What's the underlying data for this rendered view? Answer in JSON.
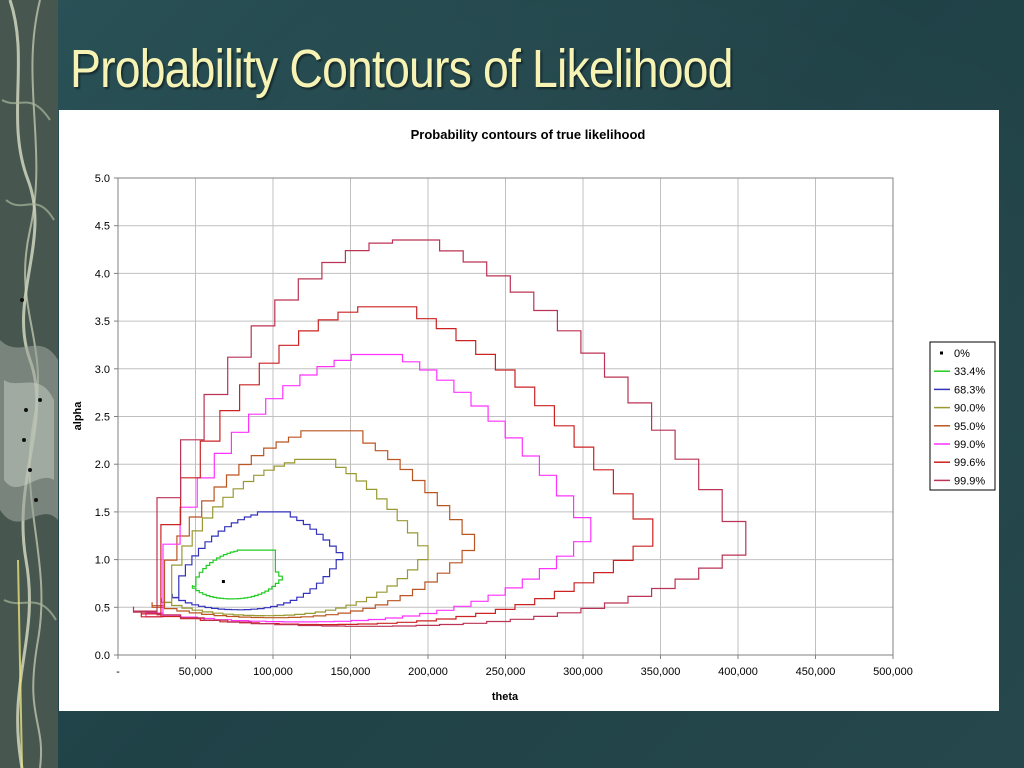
{
  "slide": {
    "title": "Probability Contours of Likelihood"
  },
  "colors": {
    "background": "#24494e",
    "title": "#f7f3b5"
  },
  "chart_data": {
    "type": "line",
    "title": "Probability contours of true likelihood",
    "xlabel": "theta",
    "ylabel": "alpha",
    "xlim": [
      0,
      500000
    ],
    "ylim": [
      0,
      5
    ],
    "x_ticks": [
      0,
      50000,
      100000,
      150000,
      200000,
      250000,
      300000,
      350000,
      400000,
      450000,
      500000
    ],
    "x_tick_labels": [
      "-",
      "50,000",
      "100,000",
      "150,000",
      "200,000",
      "250,000",
      "300,000",
      "350,000",
      "400,000",
      "450,000",
      "500,000"
    ],
    "y_ticks": [
      0,
      0.5,
      1,
      1.5,
      2,
      2.5,
      3,
      3.5,
      4,
      4.5,
      5
    ],
    "y_tick_labels": [
      "0.0",
      "0.5",
      "1.0",
      "1.5",
      "2.0",
      "2.5",
      "3.0",
      "3.5",
      "4.0",
      "4.5",
      "5.0"
    ],
    "grid": true,
    "legend_position": "right",
    "series": [
      {
        "name": "0%",
        "color": "#000000",
        "marker": "square",
        "points": [
          [
            68000,
            0.77
          ]
        ]
      },
      {
        "name": "33.4%",
        "color": "#22cc22",
        "shape": "contour",
        "xmin": 48000,
        "xmax": 106000,
        "ymin": 0.55,
        "ymax": 1.1,
        "peak_x": 82000,
        "top_left_x": 75000,
        "top_right_x": 100000,
        "bottom_left_x": 62000,
        "bottom_right_x": 92000,
        "left_y": 0.72,
        "right_y": 0.78
      },
      {
        "name": "68.3%",
        "color": "#3333bb",
        "shape": "contour",
        "xmin": 35000,
        "xmax": 145000,
        "ymin": 0.4,
        "ymax": 1.5,
        "peak_x": 100000,
        "top_left_x": 88000,
        "top_right_x": 108000,
        "bottom_left_x": 50000,
        "bottom_right_x": 90000,
        "left_y": 0.6,
        "right_y": 1.0
      },
      {
        "name": "90.0%",
        "color": "#999933",
        "shape": "contour",
        "xmin": 28000,
        "xmax": 200000,
        "ymin": 0.33,
        "ymax": 2.05,
        "peak_x": 125000,
        "top_left_x": 112000,
        "top_right_x": 135000,
        "bottom_left_x": 40000,
        "bottom_right_x": 110000,
        "left_y": 0.55,
        "right_y": 1.0
      },
      {
        "name": "95.0%",
        "color": "#bb5522",
        "shape": "contour",
        "xmin": 22000,
        "xmax": 230000,
        "ymin": 0.3,
        "ymax": 2.35,
        "peak_x": 135000,
        "top_left_x": 112000,
        "top_right_x": 150000,
        "bottom_left_x": 35000,
        "bottom_right_x": 130000,
        "left_y": 0.5,
        "right_y": 1.1
      },
      {
        "name": "99.0%",
        "color": "#ff33ff",
        "shape": "contour",
        "xmin": 18000,
        "xmax": 305000,
        "ymin": 0.25,
        "ymax": 3.15,
        "peak_x": 165000,
        "top_left_x": 150000,
        "top_right_x": 178000,
        "bottom_left_x": 30000,
        "bottom_right_x": 170000,
        "left_y": 0.4,
        "right_y": 1.2
      },
      {
        "name": "99.6%",
        "color": "#cc2222",
        "shape": "contour",
        "xmin": 15000,
        "xmax": 345000,
        "ymin": 0.22,
        "ymax": 3.65,
        "peak_x": 165000,
        "top_left_x": 142000,
        "top_right_x": 190000,
        "bottom_left_x": 25000,
        "bottom_right_x": 200000,
        "left_y": 0.4,
        "right_y": 1.15
      },
      {
        "name": "99.9%",
        "color": "#bb3355",
        "shape": "contour",
        "xmin": 10000,
        "xmax": 405000,
        "ymin": 0.2,
        "ymax": 4.35,
        "peak_x": 180000,
        "top_left_x": 165000,
        "top_right_x": 195000,
        "bottom_left_x": 25000,
        "bottom_right_x": 240000,
        "left_y": 0.45,
        "right_y": 1.05
      }
    ]
  }
}
